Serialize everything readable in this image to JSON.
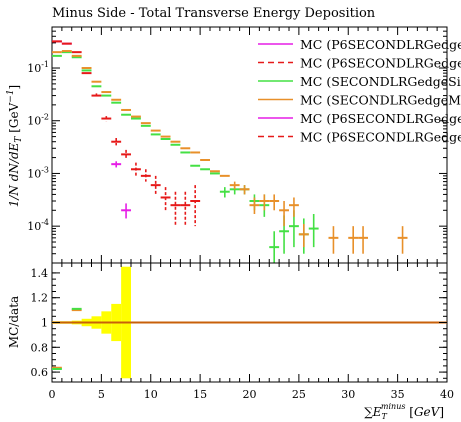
{
  "title": "Minus Side - Total Transverse Energy Deposition",
  "colors": {
    "magenta": "#e61ee6",
    "red": "#e61919",
    "green": "#44e044",
    "orange": "#e8902a",
    "ratio_line": "#c8600a",
    "band": "#ffff00"
  },
  "chart_data": [
    {
      "type": "scatter",
      "role": "main",
      "ylabel": "1/N dN/dE_T [GeV^-1]",
      "ylog": true,
      "xlim": [
        0,
        40
      ],
      "ylim": [
        2e-05,
        0.6
      ],
      "yticks": [
        {
          "value": 0.0001,
          "label": "10^-4"
        },
        {
          "value": 0.001,
          "label": "10^-3"
        },
        {
          "value": 0.01,
          "label": "10^-2"
        },
        {
          "value": 0.1,
          "label": "10^-1"
        }
      ],
      "legend_position": "top-right",
      "series": [
        {
          "name": "MC (P6SECONDLRGedge",
          "color": "magenta",
          "dash": false,
          "legend": true,
          "points": [
            [
              0.5,
              0.32,
              0,
              0
            ],
            [
              1.5,
              0.29,
              0,
              0
            ],
            [
              6.5,
              0.0015,
              0.0002,
              0.0002
            ],
            [
              7.5,
              0.0002,
              7e-05,
              6e-05
            ]
          ]
        },
        {
          "name": "MC (P6SECONDLRGedge",
          "color": "red",
          "dash": true,
          "legend": true,
          "points": [
            [
              0.5,
              0.32,
              0,
              0
            ],
            [
              1.5,
              0.29,
              0,
              0
            ],
            [
              2.5,
              0.2,
              0,
              0
            ],
            [
              3.5,
              0.08,
              0,
              0
            ],
            [
              4.5,
              0.03,
              0.003,
              0.003
            ],
            [
              5.5,
              0.011,
              0.0012,
              0.0012
            ],
            [
              6.5,
              0.004,
              0.0007,
              0.0006
            ],
            [
              7.5,
              0.0023,
              0.0005,
              0.0004
            ],
            [
              8.5,
              0.0012,
              0.0004,
              0.0003
            ],
            [
              9.5,
              0.0009,
              0.0003,
              0.0002
            ],
            [
              10.5,
              0.0006,
              0.0003,
              0.0002
            ],
            [
              11.5,
              0.00035,
              0.0002,
              0.00015
            ],
            [
              12.5,
              0.00025,
              0.0002,
              0.00015
            ],
            [
              13.5,
              0.00025,
              0.0002,
              0.00015
            ],
            [
              14.5,
              0.0003,
              0.0003,
              0.0002
            ]
          ]
        },
        {
          "name": "MC (SECONDLRGedgeSir",
          "color": "green",
          "dash": false,
          "legend": true,
          "points": [
            [
              0.5,
              0.17,
              0,
              0
            ],
            [
              1.5,
              0.2,
              0,
              0
            ],
            [
              2.5,
              0.16,
              0,
              0
            ],
            [
              3.5,
              0.09,
              0,
              0
            ],
            [
              4.5,
              0.045,
              0,
              0
            ],
            [
              5.5,
              0.03,
              0,
              0
            ],
            [
              6.5,
              0.022,
              0,
              0
            ],
            [
              7.5,
              0.013,
              0,
              0
            ],
            [
              8.5,
              0.011,
              0,
              0
            ],
            [
              9.5,
              0.008,
              0,
              0
            ],
            [
              10.5,
              0.0055,
              0,
              0
            ],
            [
              11.5,
              0.0045,
              0,
              0
            ],
            [
              12.5,
              0.0035,
              0,
              0
            ],
            [
              13.5,
              0.0025,
              0,
              0
            ],
            [
              14.5,
              0.0014,
              0,
              0
            ],
            [
              15.5,
              0.0012,
              0,
              0
            ],
            [
              16.5,
              0.001,
              0,
              0
            ],
            [
              17.5,
              0.00045,
              0.0001,
              0.0001
            ],
            [
              18.5,
              0.0005,
              0.0001,
              0.0001
            ],
            [
              19.5,
              0.0005,
              0.0001,
              0.0001
            ],
            [
              20.5,
              0.0003,
              0.0001,
              0.0001
            ],
            [
              21.5,
              0.00025,
              0.00015,
              0.0001
            ],
            [
              22.5,
              4e-05,
              4e-05,
              3e-05
            ],
            [
              23.5,
              8e-05,
              8e-05,
              5e-05
            ],
            [
              24.5,
              0.0001,
              0.0001,
              6e-05
            ],
            [
              25.5,
              7e-05,
              7e-05,
              4e-05
            ],
            [
              26.5,
              9e-05,
              8e-05,
              5e-05
            ]
          ]
        },
        {
          "name": "MC (SECONDLRGedgeM",
          "color": "orange",
          "dash": false,
          "legend": true,
          "points": [
            [
              0.5,
              0.2,
              0,
              0
            ],
            [
              1.5,
              0.21,
              0,
              0
            ],
            [
              2.5,
              0.17,
              0,
              0
            ],
            [
              3.5,
              0.1,
              0,
              0
            ],
            [
              4.5,
              0.055,
              0,
              0
            ],
            [
              5.5,
              0.035,
              0,
              0
            ],
            [
              6.5,
              0.025,
              0,
              0
            ],
            [
              7.5,
              0.016,
              0,
              0
            ],
            [
              8.5,
              0.012,
              0,
              0
            ],
            [
              9.5,
              0.009,
              0,
              0
            ],
            [
              10.5,
              0.0065,
              0,
              0
            ],
            [
              11.5,
              0.005,
              0,
              0
            ],
            [
              12.5,
              0.004,
              0,
              0
            ],
            [
              13.5,
              0.003,
              0,
              0
            ],
            [
              14.5,
              0.0025,
              0,
              0
            ],
            [
              15.5,
              0.0018,
              0,
              0
            ],
            [
              16.5,
              0.0011,
              0,
              0
            ],
            [
              17.5,
              0.0009,
              0,
              0
            ],
            [
              18.5,
              0.0006,
              0.0001,
              0.0001
            ],
            [
              19.5,
              0.0005,
              0.0001,
              0.0001
            ],
            [
              20.5,
              0.00025,
              0.0001,
              8e-05
            ],
            [
              21.5,
              0.0003,
              0.0001,
              0.0001
            ],
            [
              22.5,
              0.0003,
              0.0001,
              0.0001
            ],
            [
              23.5,
              0.0002,
              0.0001,
              0.0001
            ],
            [
              24.5,
              0.00025,
              0.0001,
              0.0001
            ],
            [
              25.5,
              7e-05,
              4e-05,
              3e-05
            ],
            [
              28.5,
              6e-05,
              4e-05,
              3e-05
            ],
            [
              30.5,
              6e-05,
              4e-05,
              3e-05
            ],
            [
              31.5,
              6e-05,
              4e-05,
              3e-05
            ],
            [
              35.5,
              6e-05,
              4e-05,
              3e-05
            ]
          ]
        },
        {
          "name": "MC (P6SECONDLRGedge",
          "color": "magenta",
          "dash": false,
          "legend": true,
          "points": []
        },
        {
          "name": "MC (P6SECONDLRGedge",
          "color": "red",
          "dash": true,
          "legend": true,
          "points": []
        }
      ]
    },
    {
      "type": "scatter",
      "role": "ratio",
      "ylabel": "MC/data",
      "xlabel": "∑E_T^minus [GeV]",
      "xlim": [
        0,
        40
      ],
      "ylim": [
        0.52,
        1.48
      ],
      "xticks": [
        0,
        5,
        10,
        15,
        20,
        25,
        30,
        35,
        40
      ],
      "yticks": [
        0.6,
        0.8,
        1,
        1.2,
        1.4
      ],
      "band": [
        {
          "x0": 0,
          "x1": 2,
          "lo": 0.99,
          "hi": 1.01
        },
        {
          "x0": 2,
          "x1": 3,
          "lo": 0.985,
          "hi": 1.015
        },
        {
          "x0": 3,
          "x1": 4,
          "lo": 0.97,
          "hi": 1.03
        },
        {
          "x0": 4,
          "x1": 5,
          "lo": 0.95,
          "hi": 1.05
        },
        {
          "x0": 5,
          "x1": 6,
          "lo": 0.91,
          "hi": 1.09
        },
        {
          "x0": 6,
          "x1": 7,
          "lo": 0.85,
          "hi": 1.15
        },
        {
          "x0": 7,
          "x1": 8,
          "lo": 0.55,
          "hi": 1.45
        }
      ],
      "line_y": 1.0,
      "series": [
        {
          "color": "orange",
          "points": [
            [
              0.5,
              0.635
            ],
            [
              2.5,
              1.1
            ]
          ]
        },
        {
          "color": "green",
          "points": [
            [
              0.5,
              0.625
            ],
            [
              2.5,
              1.11
            ]
          ]
        }
      ]
    }
  ]
}
